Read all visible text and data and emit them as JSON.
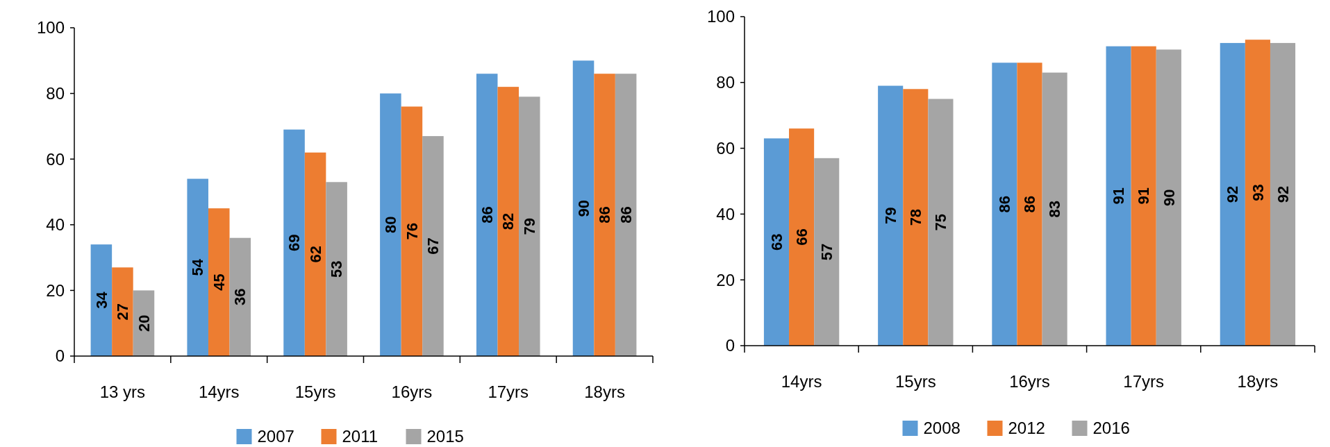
{
  "chart_data": [
    {
      "type": "bar",
      "categories": [
        "13 yrs",
        "14yrs",
        "15yrs",
        "16yrs",
        "17yrs",
        "18yrs"
      ],
      "series": [
        {
          "name": "2007",
          "color": "#5b9bd5",
          "values": [
            34,
            54,
            69,
            80,
            86,
            90
          ]
        },
        {
          "name": "2011",
          "color": "#ed7d31",
          "values": [
            27,
            45,
            62,
            76,
            82,
            86
          ]
        },
        {
          "name": "2015",
          "color": "#a5a5a5",
          "values": [
            20,
            36,
            53,
            67,
            79,
            86
          ]
        }
      ],
      "ylim": [
        0,
        100
      ],
      "yticks": [
        0,
        20,
        40,
        60,
        80,
        100
      ],
      "data_labels": true,
      "legend": "bottom"
    },
    {
      "type": "bar",
      "categories": [
        "14yrs",
        "15yrs",
        "16yrs",
        "17yrs",
        "18yrs"
      ],
      "series": [
        {
          "name": "2008",
          "color": "#5b9bd5",
          "values": [
            63,
            79,
            86,
            91,
            92
          ]
        },
        {
          "name": "2012",
          "color": "#ed7d31",
          "values": [
            66,
            78,
            86,
            91,
            93
          ]
        },
        {
          "name": "2016",
          "color": "#a5a5a5",
          "values": [
            57,
            75,
            83,
            90,
            92
          ]
        }
      ],
      "ylim": [
        0,
        100
      ],
      "yticks": [
        0,
        20,
        40,
        60,
        80,
        100
      ],
      "data_labels": true,
      "legend": "bottom"
    }
  ]
}
